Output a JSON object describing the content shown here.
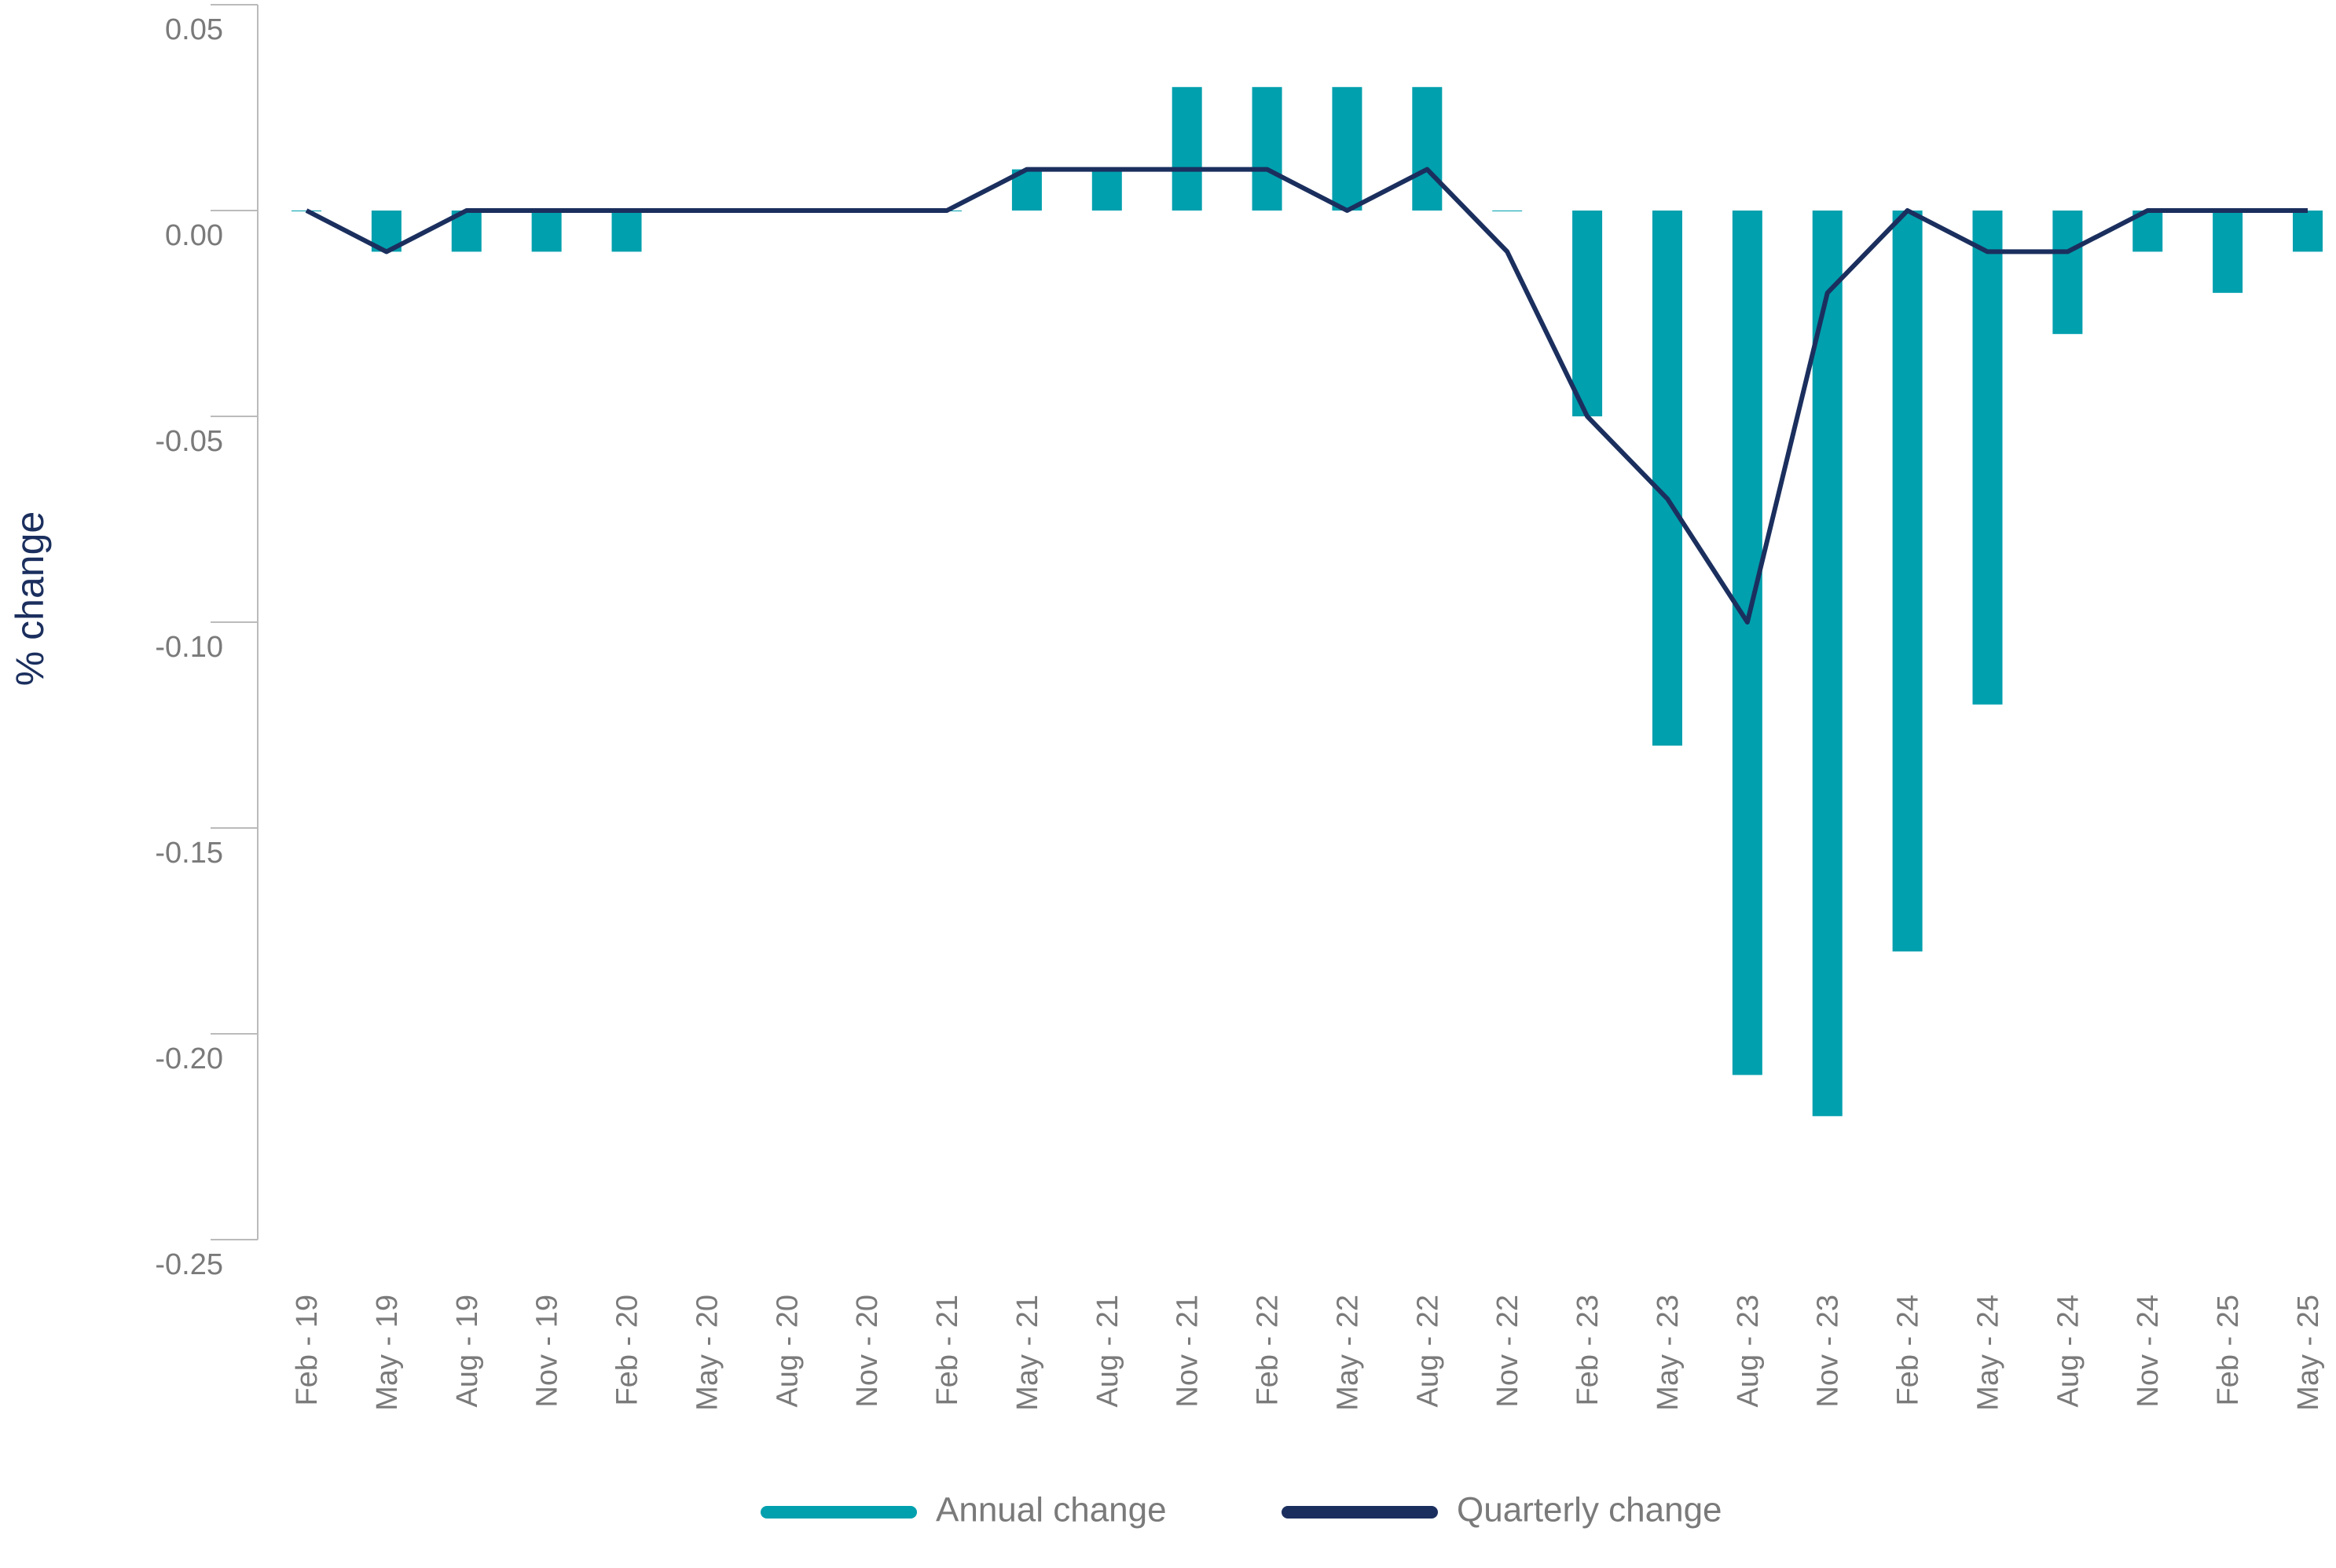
{
  "chart_data": {
    "type": "bar_line",
    "ylabel": "% change",
    "categories": [
      "Feb - 19",
      "May - 19",
      "Aug - 19",
      "Nov - 19",
      "Feb - 20",
      "May - 20",
      "Aug - 20",
      "Nov - 20",
      "Feb - 21",
      "May - 21",
      "Aug - 21",
      "Nov - 21",
      "Feb - 22",
      "May - 22",
      "Aug - 22",
      "Nov - 22",
      "Feb - 23",
      "May - 23",
      "Aug - 23",
      "Nov - 23",
      "Feb - 24",
      "May - 24",
      "Aug - 24",
      "Nov - 24",
      "Feb - 25",
      "May - 25"
    ],
    "series": [
      {
        "name": "Annual change",
        "type": "bar",
        "color": "#00a0ae",
        "values": [
          0,
          -0.01,
          -0.01,
          -0.01,
          -0.01,
          0,
          0,
          0,
          0,
          0.01,
          0.01,
          0.03,
          0.03,
          0.03,
          0.03,
          0,
          -0.05,
          -0.13,
          -0.21,
          -0.22,
          -0.18,
          -0.12,
          -0.03,
          -0.01,
          -0.02,
          -0.01
        ]
      },
      {
        "name": "Quarterly change",
        "type": "line",
        "color": "#1b2f5e",
        "values": [
          0,
          -0.01,
          0,
          0,
          0,
          0,
          0,
          0,
          0,
          0.01,
          0.01,
          0.01,
          0.01,
          0,
          0.01,
          -0.01,
          -0.05,
          -0.07,
          -0.1,
          -0.02,
          0,
          -0.01,
          -0.01,
          0,
          0,
          0
        ]
      }
    ],
    "ylim": [
      -0.25,
      0.05
    ],
    "yticks": [
      0.05,
      {
        "value": 0,
        "label": "0.00"
      },
      -0.05,
      {
        "value": -0.1,
        "label": "-0.10"
      },
      -0.15,
      {
        "value": -0.2,
        "label": "-0.20"
      },
      -0.25
    ],
    "legend": "bottom"
  }
}
